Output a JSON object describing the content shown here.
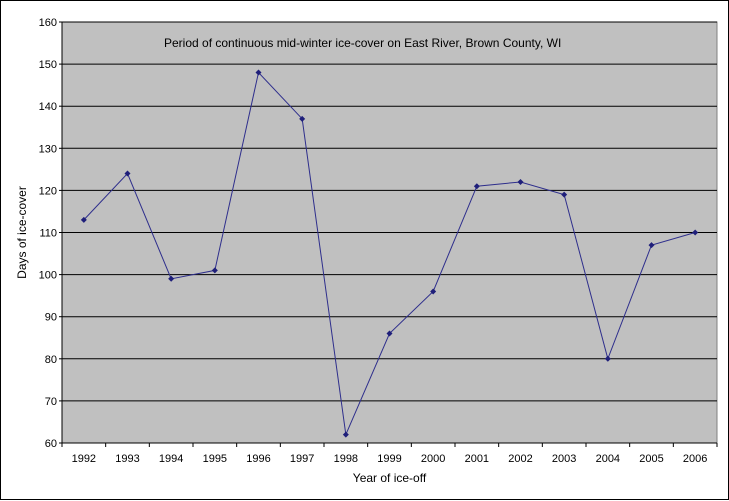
{
  "chart_data": {
    "type": "line",
    "title": "Period of continuous mid-winter ice-cover on East River, Brown County, WI",
    "xlabel": "Year of ice-off",
    "ylabel": "Days of ice-cover",
    "categories": [
      "1992",
      "1993",
      "1994",
      "1995",
      "1996",
      "1997",
      "1998",
      "1999",
      "2000",
      "2001",
      "2002",
      "2003",
      "2004",
      "2005",
      "2006"
    ],
    "series": [
      {
        "values": [
          113,
          124,
          99,
          101,
          148,
          137,
          62,
          86,
          96,
          121,
          122,
          119,
          80,
          107,
          110
        ]
      }
    ],
    "ylim": [
      60,
      160
    ],
    "yticks": [
      60,
      70,
      80,
      90,
      100,
      110,
      120,
      130,
      140,
      150,
      160
    ],
    "grid": true,
    "legend": "none",
    "colors": {
      "plot_background": "#c0c0c0",
      "line": "#2e2e8c",
      "marker": "#1f1f7a",
      "gridline": "#000000"
    }
  }
}
